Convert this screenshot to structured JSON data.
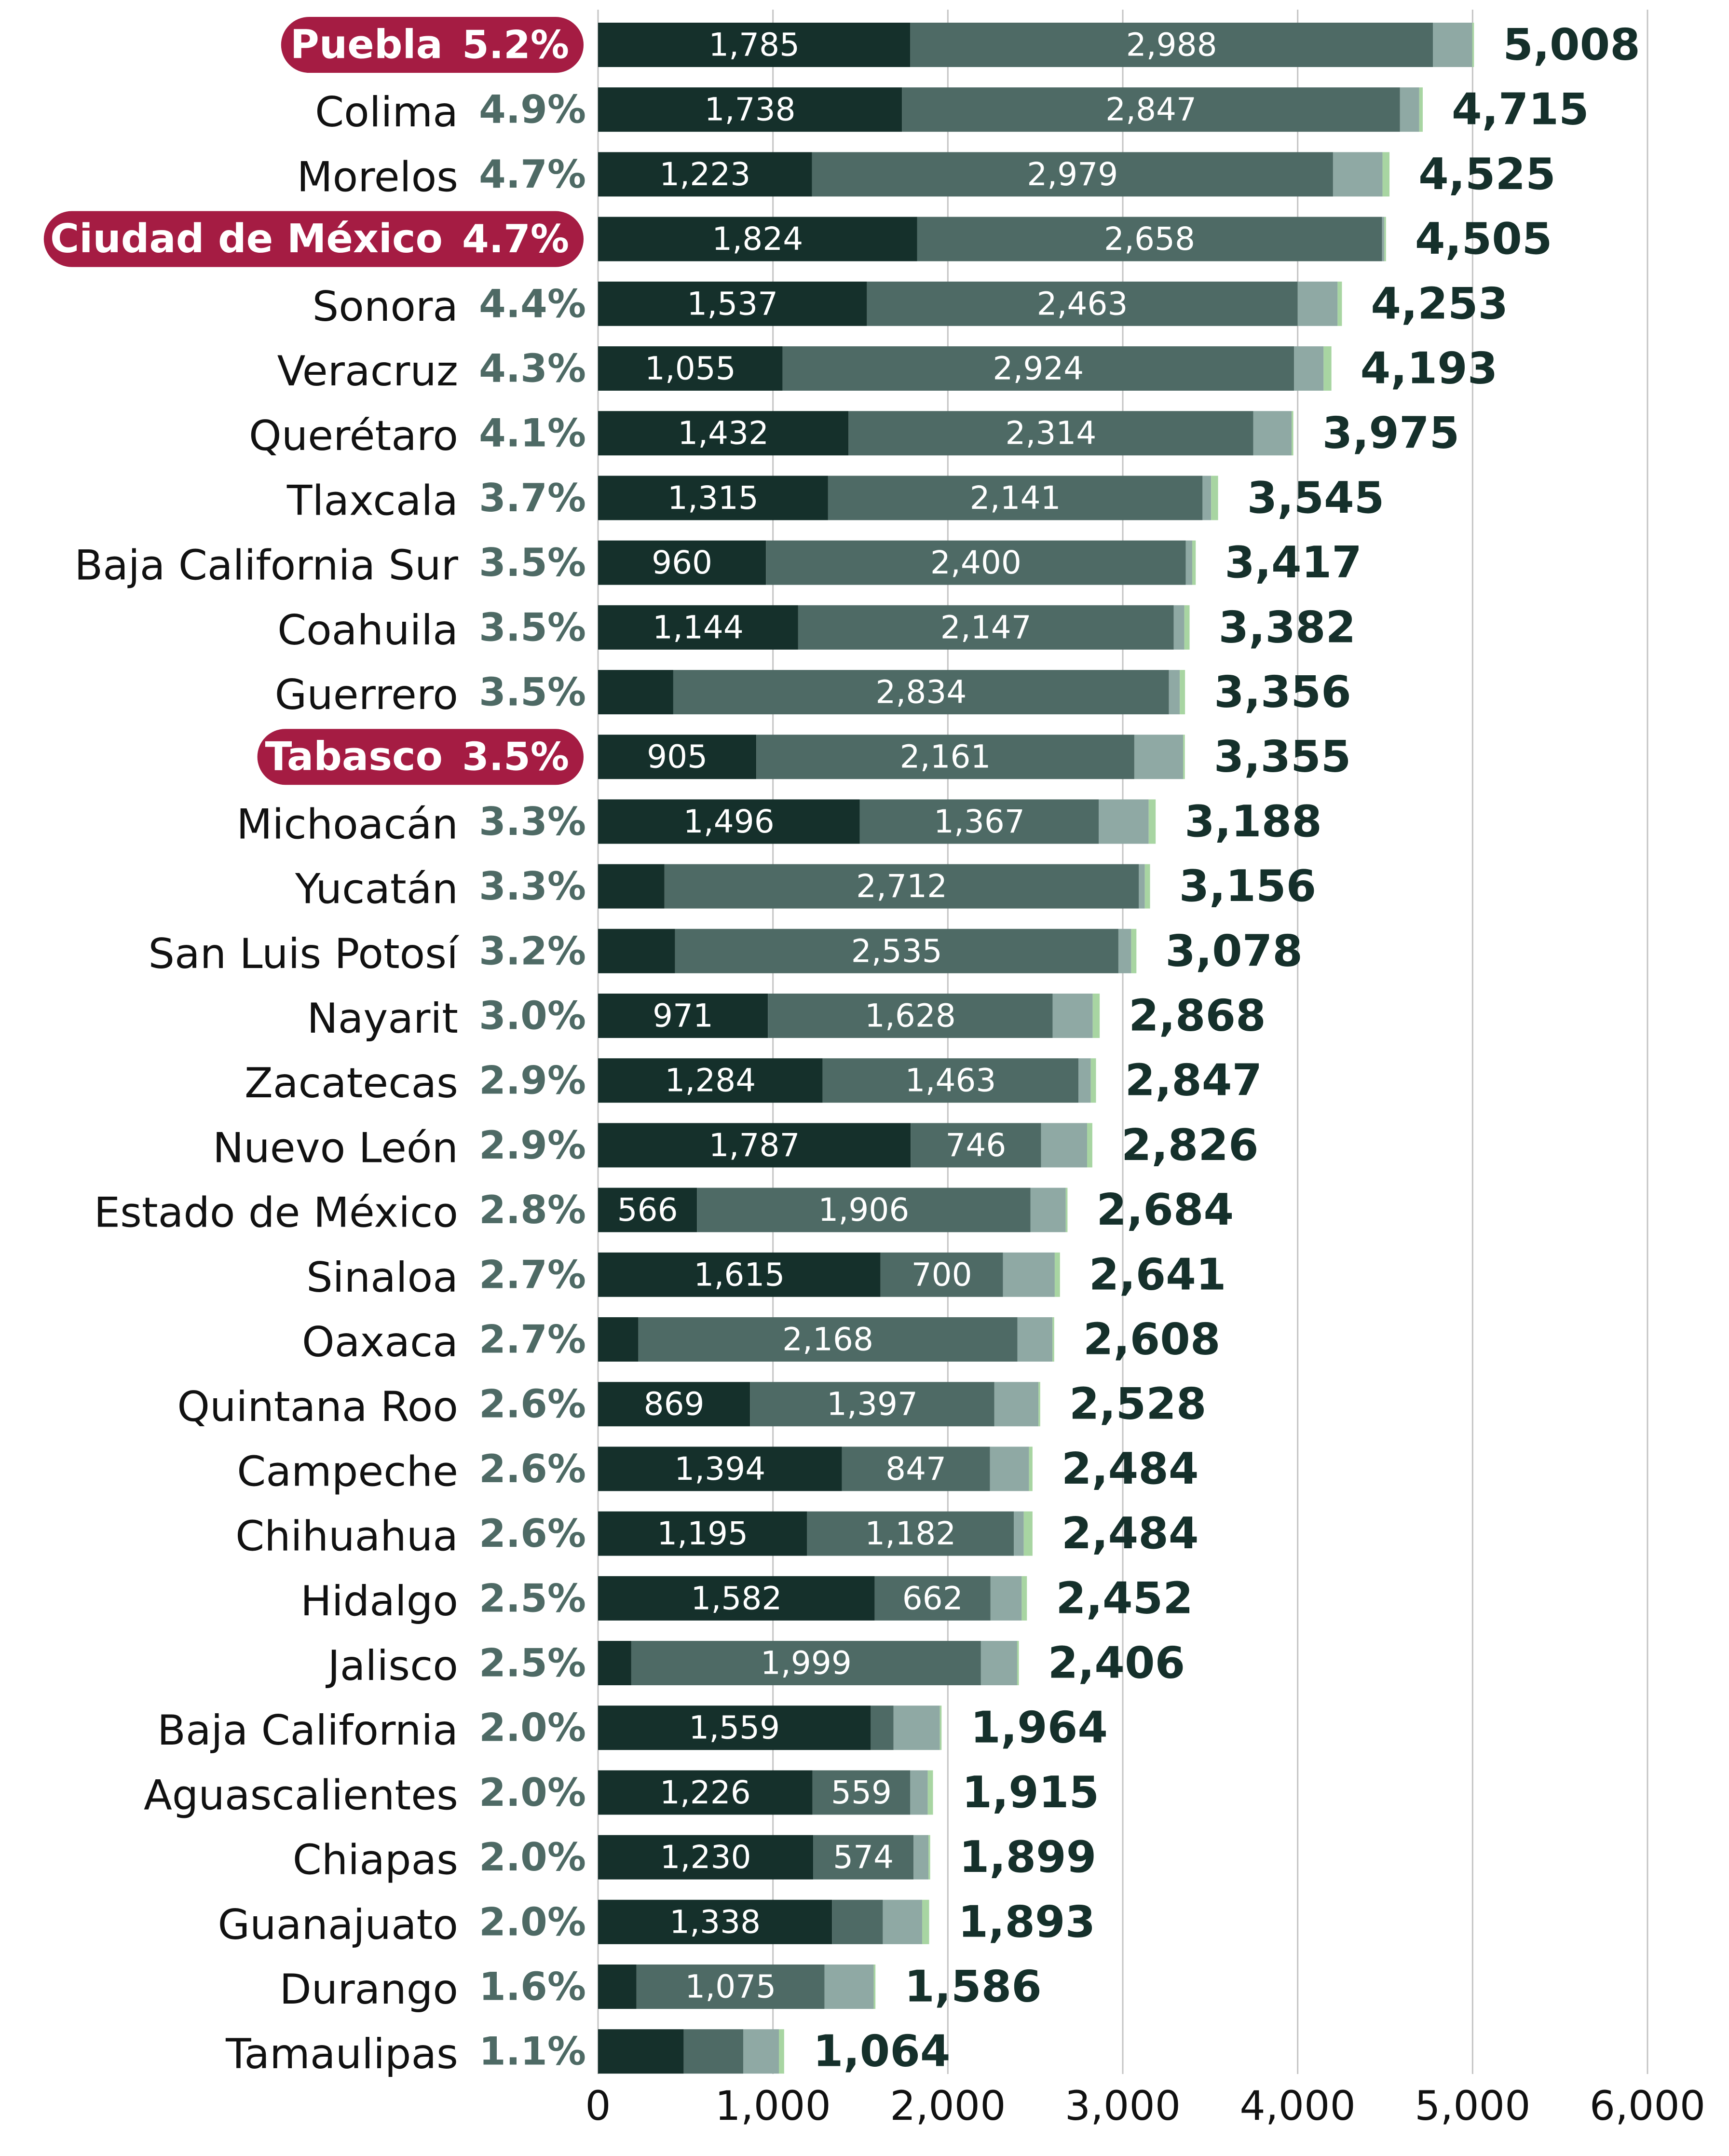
{
  "colors": {
    "segment_1": "#15302b",
    "segment_2": "#4e6a65",
    "segment_3": "#8fa9a4",
    "segment_4": "#a8d5a2",
    "pct_text": "#4e6a65",
    "total_text": "#15302b",
    "highlight_bg": "#a51c43",
    "highlight_text": "#ffffff",
    "grid": "#c4c4c4"
  },
  "chart_data": {
    "type": "bar",
    "orientation": "horizontal",
    "stacked": true,
    "xlim": [
      0,
      6000
    ],
    "x_ticks": [
      "0",
      "1,000",
      "2,000",
      "3,000",
      "4,000",
      "5,000",
      "6,000"
    ],
    "x_tick_values": [
      0,
      1000,
      2000,
      3000,
      4000,
      5000,
      6000
    ],
    "grid": "vertical",
    "legend": "none",
    "rows": [
      {
        "state": "Puebla",
        "pct": "5.2%",
        "total": "5,008",
        "total_value": 5008,
        "segments": [
          1785,
          2988,
          225,
          10
        ],
        "segment_labels": [
          "1,785",
          "2,988"
        ],
        "highlight": true
      },
      {
        "state": "Colima",
        "pct": "4.9%",
        "total": "4,715",
        "total_value": 4715,
        "segments": [
          1738,
          2847,
          110,
          20
        ],
        "segment_labels": [
          "1,738",
          "2,847"
        ],
        "highlight": false
      },
      {
        "state": "Morelos",
        "pct": "4.7%",
        "total": "4,525",
        "total_value": 4525,
        "segments": [
          1223,
          2979,
          283,
          40
        ],
        "segment_labels": [
          "1,223",
          "2,979"
        ],
        "highlight": false
      },
      {
        "state": "Ciudad de México",
        "pct": "4.7%",
        "total": "4,505",
        "total_value": 4505,
        "segments": [
          1824,
          2658,
          13,
          10
        ],
        "segment_labels": [
          "1,824",
          "2,658"
        ],
        "highlight": true
      },
      {
        "state": "Sonora",
        "pct": "4.4%",
        "total": "4,253",
        "total_value": 4253,
        "segments": [
          1537,
          2463,
          228,
          25
        ],
        "segment_labels": [
          "1,537",
          "2,463"
        ],
        "highlight": false
      },
      {
        "state": "Veracruz",
        "pct": "4.3%",
        "total": "4,193",
        "total_value": 4193,
        "segments": [
          1055,
          2924,
          169,
          45
        ],
        "segment_labels": [
          "1,055",
          "2,924"
        ],
        "highlight": false
      },
      {
        "state": "Querétaro",
        "pct": "4.1%",
        "total": "3,975",
        "total_value": 3975,
        "segments": [
          1432,
          2314,
          219,
          10
        ],
        "segment_labels": [
          "1,432",
          "2,314"
        ],
        "highlight": false
      },
      {
        "state": "Tlaxcala",
        "pct": "3.7%",
        "total": "3,545",
        "total_value": 3545,
        "segments": [
          1315,
          2141,
          49,
          40
        ],
        "segment_labels": [
          "1,315",
          "2,141"
        ],
        "highlight": false
      },
      {
        "state": "Baja California Sur",
        "pct": "3.5%",
        "total": "3,417",
        "total_value": 3417,
        "segments": [
          960,
          2400,
          37,
          20
        ],
        "segment_labels": [
          "960",
          "2,400"
        ],
        "highlight": false
      },
      {
        "state": "Coahuila",
        "pct": "3.5%",
        "total": "3,382",
        "total_value": 3382,
        "segments": [
          1144,
          2147,
          61,
          30
        ],
        "segment_labels": [
          "1,144",
          "2,147"
        ],
        "highlight": false
      },
      {
        "state": "Guerrero",
        "pct": "3.5%",
        "total": "3,356",
        "total_value": 3356,
        "segments": [
          430,
          2834,
          62,
          30
        ],
        "segment_labels": [
          "",
          "2,834"
        ],
        "highlight": false
      },
      {
        "state": "Tabasco",
        "pct": "3.5%",
        "total": "3,355",
        "total_value": 3355,
        "segments": [
          905,
          2161,
          279,
          10
        ],
        "segment_labels": [
          "905",
          "2,161"
        ],
        "highlight": true
      },
      {
        "state": "Michoacán",
        "pct": "3.3%",
        "total": "3,188",
        "total_value": 3188,
        "segments": [
          1496,
          1367,
          285,
          40
        ],
        "segment_labels": [
          "1,496",
          "1,367"
        ],
        "highlight": false
      },
      {
        "state": "Yucatán",
        "pct": "3.3%",
        "total": "3,156",
        "total_value": 3156,
        "segments": [
          380,
          2712,
          34,
          30
        ],
        "segment_labels": [
          "",
          "2,712"
        ],
        "highlight": false
      },
      {
        "state": "San Luis Potosí",
        "pct": "3.2%",
        "total": "3,078",
        "total_value": 3078,
        "segments": [
          440,
          2535,
          73,
          30
        ],
        "segment_labels": [
          "",
          "2,535"
        ],
        "highlight": false
      },
      {
        "state": "Nayarit",
        "pct": "3.0%",
        "total": "2,868",
        "total_value": 2868,
        "segments": [
          971,
          1628,
          229,
          40
        ],
        "segment_labels": [
          "971",
          "1,628"
        ],
        "highlight": false
      },
      {
        "state": "Zacatecas",
        "pct": "2.9%",
        "total": "2,847",
        "total_value": 2847,
        "segments": [
          1284,
          1463,
          70,
          30
        ],
        "segment_labels": [
          "1,284",
          "1,463"
        ],
        "highlight": false
      },
      {
        "state": "Nuevo León",
        "pct": "2.9%",
        "total": "2,826",
        "total_value": 2826,
        "segments": [
          1787,
          746,
          263,
          30
        ],
        "segment_labels": [
          "1,787",
          "746"
        ],
        "highlight": false
      },
      {
        "state": "Estado de México",
        "pct": "2.8%",
        "total": "2,684",
        "total_value": 2684,
        "segments": [
          566,
          1906,
          202,
          10
        ],
        "segment_labels": [
          "566",
          "1,906"
        ],
        "highlight": false
      },
      {
        "state": "Sinaloa",
        "pct": "2.7%",
        "total": "2,641",
        "total_value": 2641,
        "segments": [
          1615,
          700,
          296,
          30
        ],
        "segment_labels": [
          "1,615",
          "700"
        ],
        "highlight": false
      },
      {
        "state": "Oaxaca",
        "pct": "2.7%",
        "total": "2,608",
        "total_value": 2608,
        "segments": [
          230,
          2168,
          200,
          10
        ],
        "segment_labels": [
          "",
          "2,168"
        ],
        "highlight": false
      },
      {
        "state": "Quintana Roo",
        "pct": "2.6%",
        "total": "2,528",
        "total_value": 2528,
        "segments": [
          869,
          1397,
          252,
          10
        ],
        "segment_labels": [
          "869",
          "1,397"
        ],
        "highlight": false
      },
      {
        "state": "Campeche",
        "pct": "2.6%",
        "total": "2,484",
        "total_value": 2484,
        "segments": [
          1394,
          847,
          223,
          20
        ],
        "segment_labels": [
          "1,394",
          "847"
        ],
        "highlight": false
      },
      {
        "state": "Chihuahua",
        "pct": "2.6%",
        "total": "2,484",
        "total_value": 2484,
        "segments": [
          1195,
          1182,
          57,
          50
        ],
        "segment_labels": [
          "1,195",
          "1,182"
        ],
        "highlight": false
      },
      {
        "state": "Hidalgo",
        "pct": "2.5%",
        "total": "2,452",
        "total_value": 2452,
        "segments": [
          1582,
          662,
          178,
          30
        ],
        "segment_labels": [
          "1,582",
          "662"
        ],
        "highlight": false
      },
      {
        "state": "Jalisco",
        "pct": "2.5%",
        "total": "2,406",
        "total_value": 2406,
        "segments": [
          190,
          1999,
          207,
          10
        ],
        "segment_labels": [
          "",
          "1,999"
        ],
        "highlight": false
      },
      {
        "state": "Baja California",
        "pct": "2.0%",
        "total": "1,964",
        "total_value": 1964,
        "segments": [
          1559,
          130,
          265,
          10
        ],
        "segment_labels": [
          "1,559",
          ""
        ],
        "highlight": false
      },
      {
        "state": "Aguascalientes",
        "pct": "2.0%",
        "total": "1,915",
        "total_value": 1915,
        "segments": [
          1226,
          559,
          100,
          30
        ],
        "segment_labels": [
          "1,226",
          "559"
        ],
        "highlight": false
      },
      {
        "state": "Chiapas",
        "pct": "2.0%",
        "total": "1,899",
        "total_value": 1899,
        "segments": [
          1230,
          574,
          85,
          10
        ],
        "segment_labels": [
          "1,230",
          "574"
        ],
        "highlight": false
      },
      {
        "state": "Guanajuato",
        "pct": "2.0%",
        "total": "1,893",
        "total_value": 1893,
        "segments": [
          1338,
          290,
          225,
          40
        ],
        "segment_labels": [
          "1,338",
          ""
        ],
        "highlight": false
      },
      {
        "state": "Durango",
        "pct": "1.6%",
        "total": "1,586",
        "total_value": 1586,
        "segments": [
          220,
          1075,
          281,
          10
        ],
        "segment_labels": [
          "",
          "1,075"
        ],
        "highlight": false
      },
      {
        "state": "Tamaulipas",
        "pct": "1.1%",
        "total": "1,064",
        "total_value": 1064,
        "segments": [
          490,
          340,
          204,
          30
        ],
        "segment_labels": [
          "",
          ""
        ],
        "highlight": false
      }
    ]
  }
}
